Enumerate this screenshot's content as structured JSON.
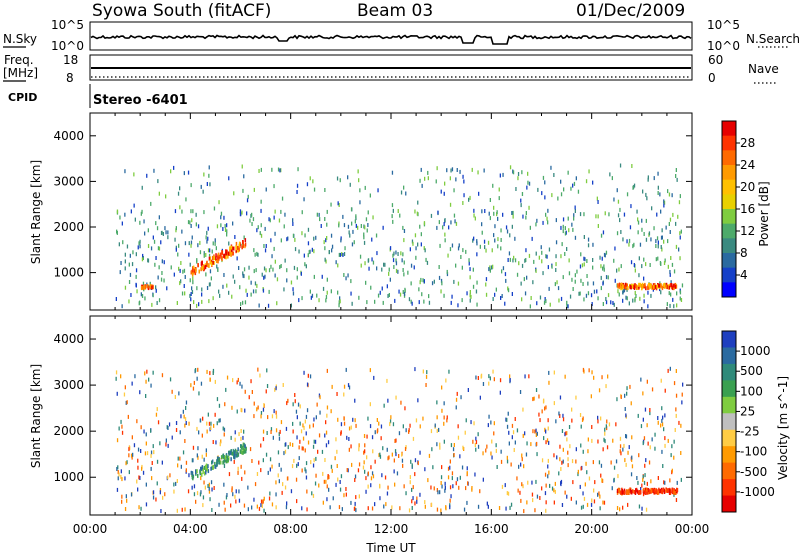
{
  "header": {
    "station": "Syowa South (fitACF)",
    "beam": "Beam 03",
    "date": "01/Dec/2009"
  },
  "noise_panel": {
    "left_label": "N.Sky",
    "right_label": "N.Search",
    "left_ticks": [
      "10^5",
      "10^0"
    ],
    "right_ticks": [
      "10^5",
      "10^0"
    ]
  },
  "freq_panel": {
    "left_label_1": "Freq.",
    "left_label_2": "[MHz]",
    "right_label": "Nave",
    "left_ticks": [
      "18",
      "8"
    ],
    "right_ticks": [
      "60",
      "0"
    ]
  },
  "cpid": {
    "label": "CPID",
    "value": "Stereo -6401"
  },
  "x_axis": {
    "label": "Time UT",
    "ticks": [
      "00:00",
      "04:00",
      "08:00",
      "12:00",
      "16:00",
      "20:00",
      "00:00"
    ]
  },
  "power_colorbar": {
    "label": "Power [dB]",
    "ticks": [
      "28",
      "24",
      "20",
      "16",
      "12",
      "8",
      "4"
    ],
    "colors": [
      "#e60000",
      "#ff3300",
      "#ff6a00",
      "#ff9a00",
      "#ffc000",
      "#e8d000",
      "#7fcc40",
      "#4daa6a",
      "#3a8a80",
      "#2a6aa0",
      "#1540c8",
      "#0000ff"
    ]
  },
  "velocity_colorbar": {
    "label": "Velocity [m s^-1]",
    "ticks": [
      "1000",
      "500",
      "100",
      "25",
      "-25",
      "-100",
      "-500",
      "-1000"
    ],
    "colors": [
      "#1e3fbf",
      "#2a6aa0",
      "#2f8a7a",
      "#3aa050",
      "#7fcc40",
      "#bfbfbf",
      "#ffcc44",
      "#ff9a00",
      "#ff6a00",
      "#ff3300",
      "#e60000"
    ]
  },
  "chart_data": [
    {
      "type": "heatmap",
      "title": "",
      "xlabel": "Time UT",
      "ylabel": "Slant Range [km]",
      "xlim": [
        0,
        24
      ],
      "ylim": [
        180,
        4500
      ],
      "yticks": [
        1000,
        2000,
        3000,
        4000
      ],
      "quantity": "Power [dB]",
      "features": [
        {
          "t0": 4.0,
          "t1": 6.2,
          "r0": 1050,
          "r1": 1700,
          "level": "high (20-28 dB)"
        },
        {
          "t0": 2.0,
          "t1": 2.5,
          "r0": 700,
          "r1": 750,
          "level": "high"
        },
        {
          "t0": 21.0,
          "t1": 23.4,
          "r0": 700,
          "r1": 780,
          "level": "high (24-28 dB)"
        },
        {
          "t0": 1.0,
          "t1": 23.5,
          "r0": 300,
          "r1": 3400,
          "level": "scattered low (4-12 dB)"
        }
      ]
    },
    {
      "type": "heatmap",
      "title": "",
      "xlabel": "Time UT",
      "ylabel": "Slant Range [km]",
      "xlim": [
        0,
        24
      ],
      "ylim": [
        180,
        4500
      ],
      "yticks": [
        1000,
        2000,
        3000,
        4000
      ],
      "quantity": "Velocity [m s^-1]",
      "features": [
        {
          "t0": 4.0,
          "t1": 6.2,
          "r0": 1050,
          "r1": 1700,
          "level": "positive (100-1000)"
        },
        {
          "t0": 21.0,
          "t1": 23.4,
          "r0": 700,
          "r1": 780,
          "level": "negative (-500 to -1000)"
        },
        {
          "t0": 1.0,
          "t1": 23.5,
          "r0": 300,
          "r1": 3400,
          "level": "scattered mixed"
        }
      ]
    }
  ]
}
